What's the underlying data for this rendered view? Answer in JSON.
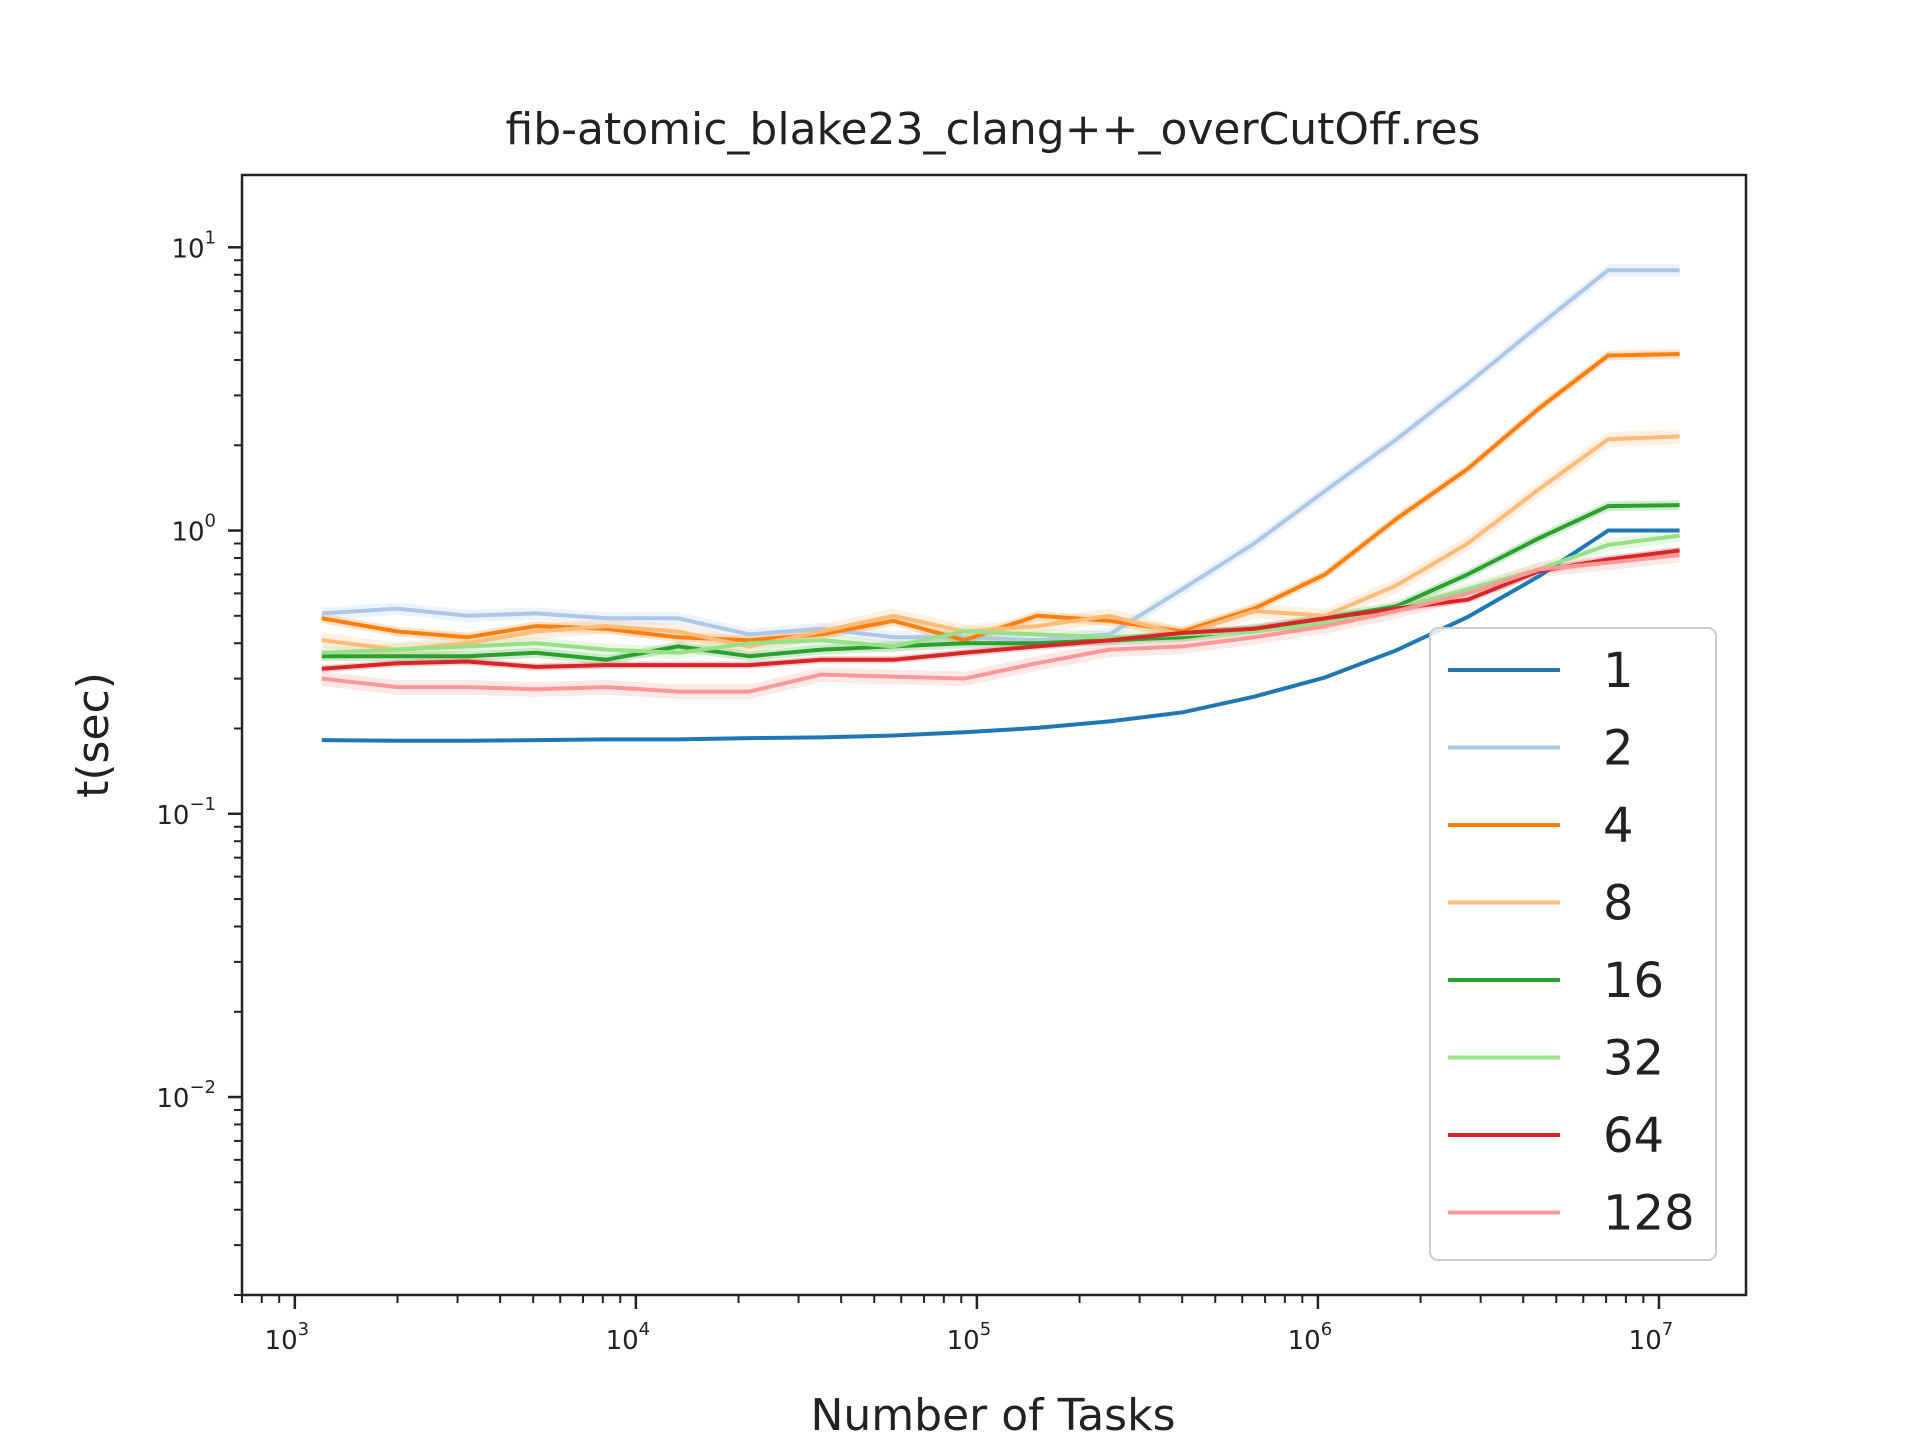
{
  "chart_data": {
    "type": "line",
    "title": "fib-atomic_blake23_clang++_overCutOff.res",
    "xlabel": "Number of Tasks",
    "ylabel": "t(sec)",
    "xscale": "log",
    "yscale": "log",
    "xlim": [
      700,
      18000000
    ],
    "ylim": [
      0.002,
      18
    ],
    "x_ticks": [
      {
        "base": "10",
        "exp": "3",
        "value": 1000
      },
      {
        "base": "10",
        "exp": "4",
        "value": 10000
      },
      {
        "base": "10",
        "exp": "5",
        "value": 100000
      },
      {
        "base": "10",
        "exp": "6",
        "value": 1000000
      },
      {
        "base": "10",
        "exp": "7",
        "value": 10000000
      }
    ],
    "y_ticks": [
      {
        "base": "10",
        "exp": "1",
        "value": 10
      },
      {
        "base": "10",
        "exp": "0",
        "value": 1
      },
      {
        "base": "10",
        "exp": "−1",
        "value": 0.1
      },
      {
        "base": "10",
        "exp": "−2",
        "value": 0.01
      }
    ],
    "grid": false,
    "legend_position": "lower-right",
    "x": [
      1200,
      2000,
      3200,
      5100,
      8200,
      13300,
      21500,
      35000,
      57000,
      92000,
      150000,
      245000,
      400000,
      650000,
      1050000,
      1700000,
      2750000,
      4450000,
      7100000,
      11500000
    ],
    "series": [
      {
        "name": "1",
        "color": "#1f77b4",
        "band": 0.0,
        "values": [
          0.182,
          0.181,
          0.181,
          0.182,
          0.183,
          0.183,
          0.185,
          0.186,
          0.189,
          0.194,
          0.201,
          0.212,
          0.228,
          0.259,
          0.303,
          0.378,
          0.495,
          0.69,
          1.0,
          1.0
        ]
      },
      {
        "name": "2",
        "color": "#aec7e8",
        "band": 0.05,
        "values": [
          0.51,
          0.53,
          0.5,
          0.51,
          0.49,
          0.49,
          0.43,
          0.45,
          0.42,
          0.42,
          0.41,
          0.43,
          0.62,
          0.9,
          1.38,
          2.1,
          3.3,
          5.3,
          8.3,
          8.3
        ]
      },
      {
        "name": "4",
        "color": "#ff7f0e",
        "band": 0.04,
        "values": [
          0.49,
          0.44,
          0.42,
          0.46,
          0.45,
          0.42,
          0.41,
          0.43,
          0.48,
          0.41,
          0.5,
          0.48,
          0.44,
          0.53,
          0.7,
          1.1,
          1.65,
          2.7,
          4.15,
          4.2
        ]
      },
      {
        "name": "8",
        "color": "#ffbb78",
        "band": 0.06,
        "values": [
          0.41,
          0.38,
          0.4,
          0.44,
          0.46,
          0.44,
          0.39,
          0.44,
          0.5,
          0.44,
          0.46,
          0.5,
          0.43,
          0.52,
          0.5,
          0.64,
          0.9,
          1.4,
          2.1,
          2.15
        ]
      },
      {
        "name": "16",
        "color": "#2ca02c",
        "band": 0.04,
        "values": [
          0.36,
          0.36,
          0.36,
          0.37,
          0.35,
          0.39,
          0.36,
          0.38,
          0.39,
          0.4,
          0.4,
          0.41,
          0.42,
          0.45,
          0.49,
          0.54,
          0.7,
          0.94,
          1.22,
          1.23
        ]
      },
      {
        "name": "32",
        "color": "#98df8a",
        "band": 0.05,
        "values": [
          0.37,
          0.38,
          0.39,
          0.4,
          0.38,
          0.37,
          0.4,
          0.41,
          0.39,
          0.44,
          0.43,
          0.42,
          0.43,
          0.44,
          0.47,
          0.53,
          0.62,
          0.73,
          0.89,
          0.96
        ]
      },
      {
        "name": "64",
        "color": "#d62728",
        "band": 0.03,
        "values": [
          0.325,
          0.34,
          0.345,
          0.33,
          0.335,
          0.335,
          0.335,
          0.35,
          0.35,
          0.37,
          0.39,
          0.41,
          0.435,
          0.45,
          0.49,
          0.53,
          0.57,
          0.72,
          0.79,
          0.85
        ]
      },
      {
        "name": "128",
        "color": "#ff9896",
        "band": 0.06,
        "values": [
          0.3,
          0.28,
          0.28,
          0.275,
          0.28,
          0.27,
          0.27,
          0.31,
          0.305,
          0.3,
          0.34,
          0.38,
          0.39,
          0.42,
          0.46,
          0.52,
          0.6,
          0.73,
          0.77,
          0.82
        ]
      }
    ]
  }
}
